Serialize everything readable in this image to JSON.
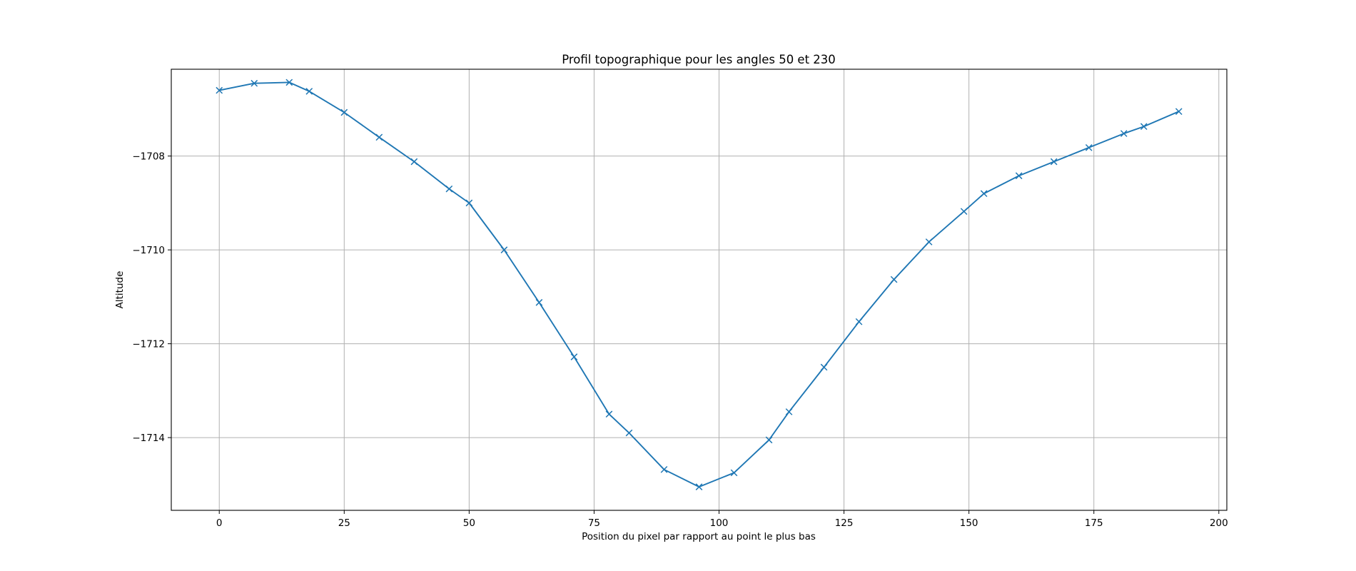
{
  "chart_data": {
    "type": "line",
    "title": "Profil topographique pour les angles 50 et 230",
    "xlabel": "Position du pixel par rapport au point le plus bas",
    "ylabel": "Altitude",
    "xlim": [
      -9.6,
      201.6
    ],
    "ylim": [
      -1715.55,
      -1706.15
    ],
    "xticks": [
      0,
      25,
      50,
      75,
      100,
      125,
      150,
      175,
      200
    ],
    "xtick_labels": [
      "0",
      "25",
      "50",
      "75",
      "100",
      "125",
      "150",
      "175",
      "200"
    ],
    "yticks": [
      -1714,
      -1712,
      -1710,
      -1708
    ],
    "ytick_labels": [
      "−1714",
      "−1712",
      "−1710",
      "−1708"
    ],
    "grid": true,
    "legend": false,
    "marker": "x",
    "color": "#1f77b4",
    "series": [
      {
        "x": [
          0,
          7,
          14,
          18,
          25,
          32,
          39,
          46,
          50,
          57,
          64,
          71,
          78,
          82,
          89,
          96,
          103,
          110,
          114,
          121,
          128,
          135,
          142,
          149,
          153,
          160,
          167,
          174,
          181,
          185,
          192
        ],
        "y": [
          -1706.6,
          -1706.45,
          -1706.43,
          -1706.62,
          -1707.07,
          -1707.6,
          -1708.12,
          -1708.7,
          -1709.0,
          -1710.0,
          -1711.12,
          -1712.28,
          -1713.5,
          -1713.9,
          -1714.68,
          -1715.05,
          -1714.75,
          -1714.05,
          -1713.45,
          -1712.5,
          -1711.53,
          -1710.63,
          -1709.83,
          -1709.18,
          -1708.8,
          -1708.42,
          -1708.12,
          -1707.82,
          -1707.52,
          -1707.37,
          -1707.05
        ]
      }
    ]
  }
}
